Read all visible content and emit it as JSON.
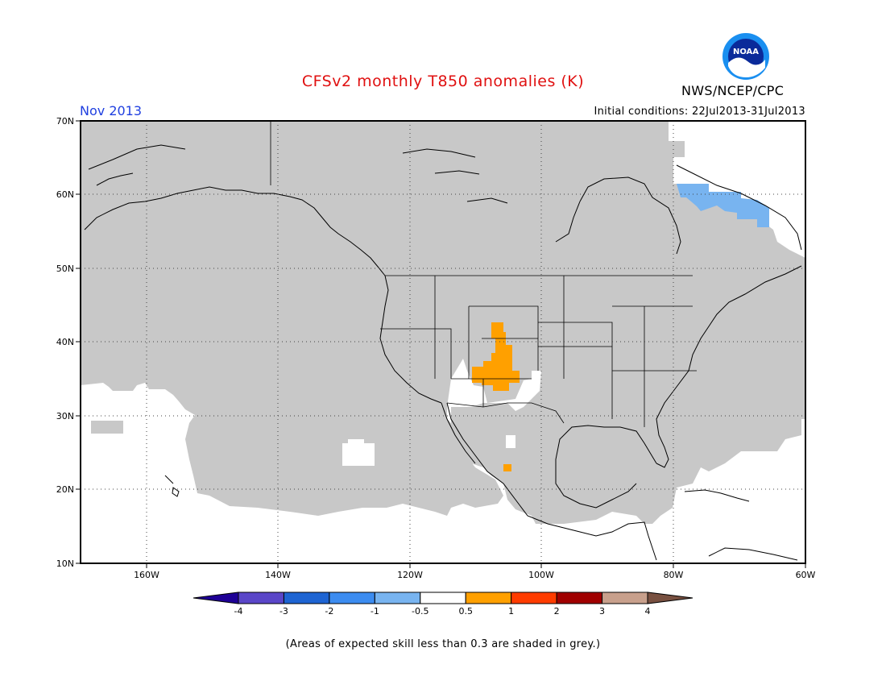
{
  "header": {
    "title": "CFSv2 monthly T850 anomalies (K)",
    "period": "Nov 2013",
    "initial_conditions": "Initial conditions: 22Jul2013-31Jul2013",
    "agency": "NWS/NCEP/CPC",
    "logo_text": "NOAA"
  },
  "map": {
    "lat_labels": [
      "70N",
      "60N",
      "50N",
      "40N",
      "30N",
      "20N",
      "10N"
    ],
    "lon_labels": [
      "160W",
      "140W",
      "120W",
      "100W",
      "80W",
      "60W"
    ],
    "colors": {
      "low_skill": "#c8c8c8",
      "warm_anomaly": "#ffa000",
      "cool_anomaly": "#78b4f0",
      "coastline": "#000000"
    }
  },
  "colorbar": {
    "labels": [
      "-4",
      "-3",
      "-2",
      "-1",
      "-0.5",
      "0.5",
      "1",
      "2",
      "3",
      "4"
    ],
    "colors": [
      "#1e0096",
      "#5a46c8",
      "#1e64d2",
      "#3c8cf0",
      "#78b4f0",
      "#ffffff",
      "#ffa000",
      "#ff3c00",
      "#a00000",
      "#c8a08c",
      "#785040"
    ]
  },
  "footnote": "(Areas of expected skill less than 0.3 are shaded in grey.)"
}
